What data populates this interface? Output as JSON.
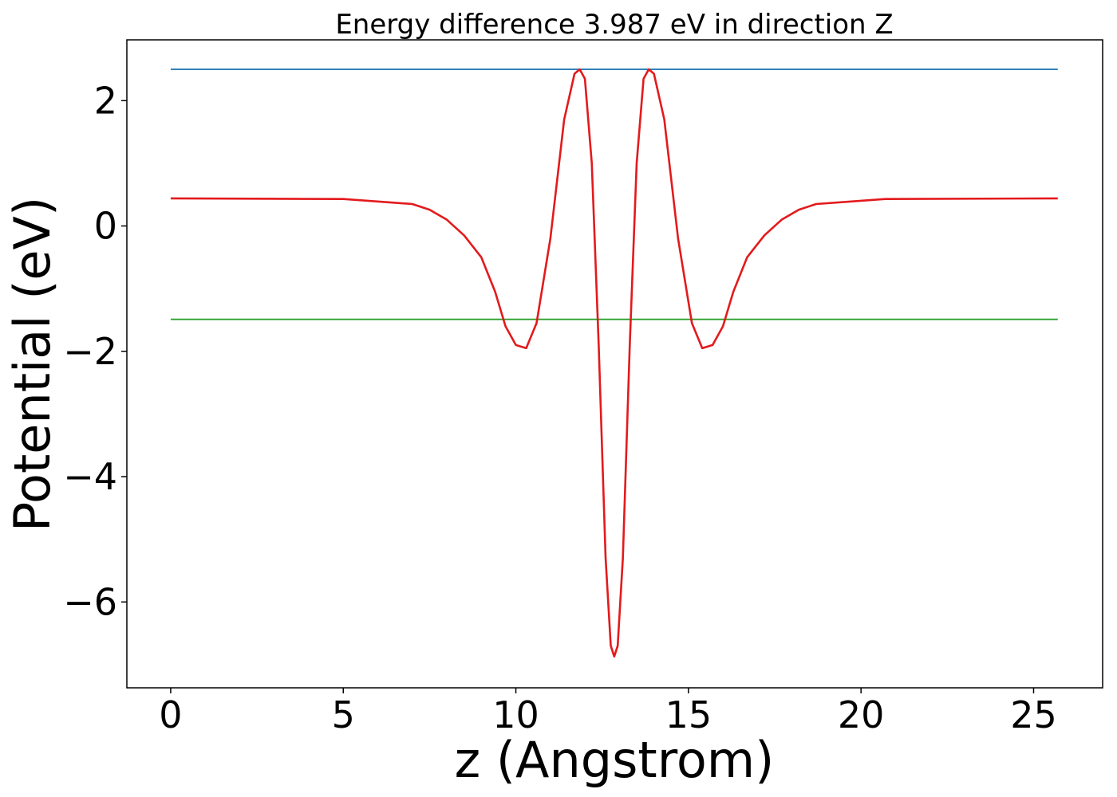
{
  "chart_data": {
    "type": "line",
    "title": "Energy difference 3.987 eV in direction Z",
    "xlabel": "z (Angstrom)",
    "ylabel": "Potential (eV)",
    "xlim": [
      -1.27,
      27.0
    ],
    "ylim": [
      -7.37,
      2.97
    ],
    "xticks": [
      0,
      5,
      10,
      15,
      20,
      25
    ],
    "xtick_labels": [
      "0",
      "5",
      "10",
      "15",
      "20",
      "25"
    ],
    "yticks": [
      2,
      0,
      -2,
      -4,
      -6
    ],
    "ytick_labels": [
      "2",
      "0",
      "−2",
      "−4",
      "−6"
    ],
    "grid": false,
    "legend": "none",
    "series": [
      {
        "color": "#1f77b4",
        "x": [
          0,
          25.7
        ],
        "y": [
          2.5,
          2.5
        ]
      },
      {
        "color": "#2ca02c",
        "x": [
          0,
          25.7
        ],
        "y": [
          -1.49,
          -1.49
        ]
      },
      {
        "color": "#e31a1c",
        "x": [
          0,
          5,
          7,
          7.5,
          8,
          8.5,
          9,
          9.4,
          9.7,
          10,
          10.3,
          10.6,
          11,
          11.4,
          11.7,
          11.85,
          12.0,
          12.2,
          12.4,
          12.6,
          12.75,
          12.85,
          12.95,
          13.1,
          13.3,
          13.5,
          13.7,
          13.85,
          14.0,
          14.3,
          14.7,
          15.1,
          15.4,
          15.7,
          16.0,
          16.3,
          16.7,
          17.2,
          17.7,
          18.2,
          18.7,
          20.7,
          25.7
        ],
        "y": [
          0.44,
          0.43,
          0.35,
          0.26,
          0.1,
          -0.15,
          -0.5,
          -1.05,
          -1.6,
          -1.9,
          -1.95,
          -1.55,
          -0.2,
          1.7,
          2.43,
          2.5,
          2.35,
          1.0,
          -1.9,
          -5.3,
          -6.7,
          -6.87,
          -6.7,
          -5.3,
          -1.9,
          1.0,
          2.35,
          2.5,
          2.43,
          1.7,
          -0.2,
          -1.55,
          -1.95,
          -1.9,
          -1.6,
          -1.05,
          -0.5,
          -0.15,
          0.1,
          0.26,
          0.35,
          0.43,
          0.44
        ]
      }
    ]
  }
}
